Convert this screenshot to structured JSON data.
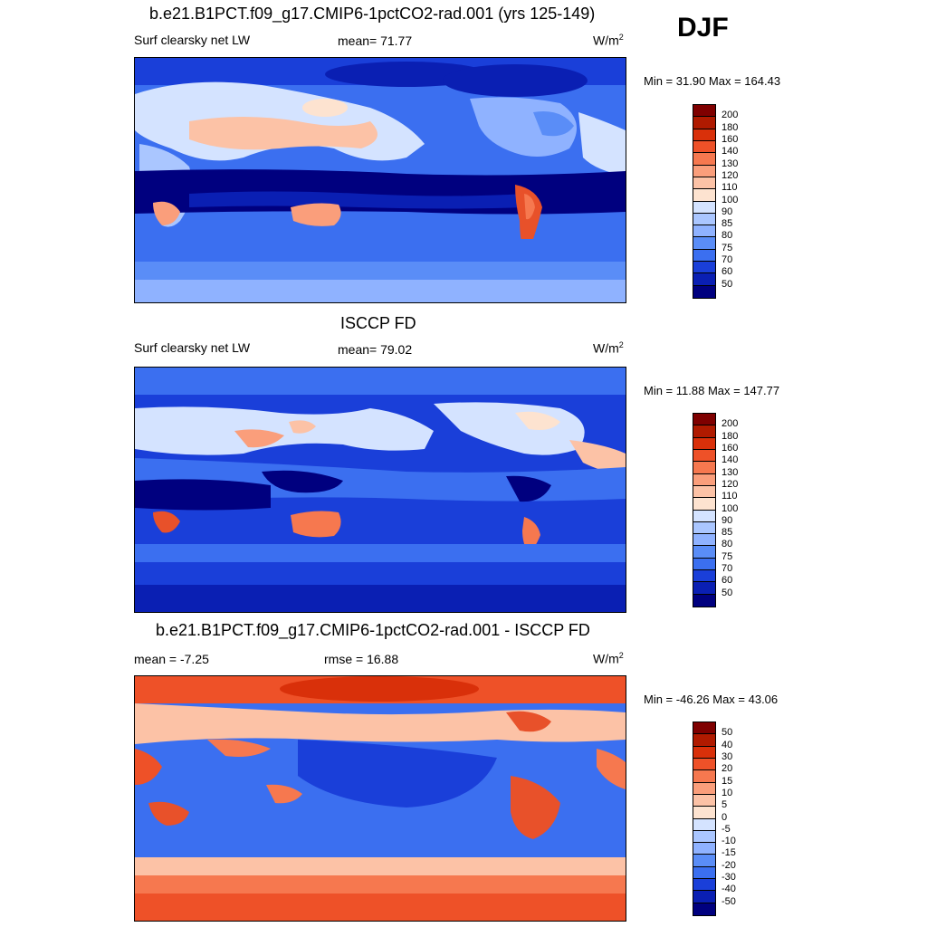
{
  "season": "DJF",
  "palette": {
    "dark_blue": "#00007f",
    "blue": "#1a3fd9",
    "mid_blue": "#3b6ff0",
    "light_blue": "#8fb2ff",
    "pale_blue": "#d4e3ff",
    "cream": "#fde3d0",
    "light_orange": "#f9a27c",
    "orange_red": "#e8512a",
    "dark_red": "#7f0000"
  },
  "panels": [
    {
      "title": "b.e21.B1PCT.f09_g17.CMIP6-1pctCO2-rad.001 (yrs 125-149)",
      "left_label": "Surf clearsky net LW",
      "center_label": "mean=  71.77",
      "units": "W/m",
      "units_sup": "2",
      "minmax": "Min =  31.90 Max = 164.43",
      "colorbar": {
        "levels": [
          "200",
          "180",
          "160",
          "140",
          "130",
          "120",
          "110",
          "100",
          "90",
          "85",
          "80",
          "75",
          "70",
          "60",
          "50"
        ],
        "colors": [
          "#7f0000",
          "#b01a00",
          "#d9300a",
          "#ee5128",
          "#f6784f",
          "#fa9e7b",
          "#fcc2a6",
          "#fde3d0",
          "#d4e3ff",
          "#aac6ff",
          "#8fb2ff",
          "#5a8df7",
          "#3b6ff0",
          "#1a3fd9",
          "#0a1fb3",
          "#00007f"
        ]
      }
    },
    {
      "title": "ISCCP FD",
      "left_label": "Surf clearsky net LW",
      "center_label": "mean=  79.02",
      "units": "W/m",
      "units_sup": "2",
      "minmax": "Min =  11.88 Max = 147.77",
      "colorbar": {
        "levels": [
          "200",
          "180",
          "160",
          "140",
          "130",
          "120",
          "110",
          "100",
          "90",
          "85",
          "80",
          "75",
          "70",
          "60",
          "50"
        ],
        "colors": [
          "#7f0000",
          "#b01a00",
          "#d9300a",
          "#ee5128",
          "#f6784f",
          "#fa9e7b",
          "#fcc2a6",
          "#fde3d0",
          "#d4e3ff",
          "#aac6ff",
          "#8fb2ff",
          "#5a8df7",
          "#3b6ff0",
          "#1a3fd9",
          "#0a1fb3",
          "#00007f"
        ]
      }
    },
    {
      "title": "b.e21.B1PCT.f09_g17.CMIP6-1pctCO2-rad.001 - ISCCP FD",
      "left_label": "mean =  -7.25",
      "center_label": "rmse =  16.88",
      "units": "W/m",
      "units_sup": "2",
      "minmax": "Min = -46.26 Max =  43.06",
      "colorbar": {
        "levels": [
          "50",
          "40",
          "30",
          "20",
          "15",
          "10",
          "5",
          "0",
          "-5",
          "-10",
          "-15",
          "-20",
          "-30",
          "-40",
          "-50"
        ],
        "colors": [
          "#7f0000",
          "#b01a00",
          "#d9300a",
          "#ee5128",
          "#f6784f",
          "#fa9e7b",
          "#fcc2a6",
          "#fde3d0",
          "#d4e3ff",
          "#aac6ff",
          "#8fb2ff",
          "#5a8df7",
          "#3b6ff0",
          "#1a3fd9",
          "#0a1fb3",
          "#00007f"
        ]
      }
    }
  ]
}
